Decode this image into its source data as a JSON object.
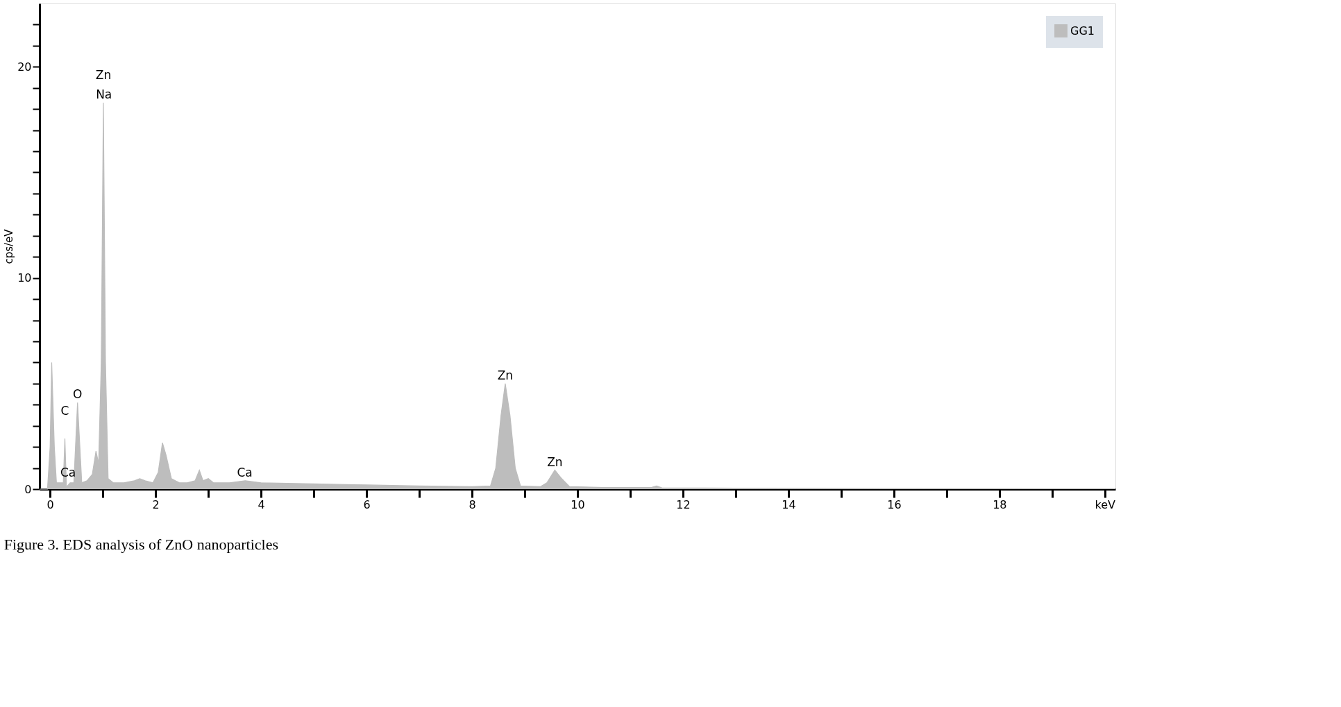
{
  "chart_data": {
    "type": "area",
    "ylabel": "cps/eV",
    "x": [
      -0.2,
      -0.05,
      0.0,
      0.03,
      0.08,
      0.12,
      0.18,
      0.25,
      0.28,
      0.31,
      0.38,
      0.45,
      0.52,
      0.6,
      0.7,
      0.8,
      0.87,
      0.92,
      0.97,
      1.01,
      1.05,
      1.1,
      1.2,
      1.4,
      1.6,
      1.7,
      1.8,
      1.95,
      2.05,
      2.13,
      2.2,
      2.3,
      2.45,
      2.6,
      2.75,
      2.83,
      2.9,
      3.0,
      3.1,
      3.4,
      3.7,
      4.0,
      5.0,
      6.0,
      7.0,
      8.0,
      8.35,
      8.45,
      8.55,
      8.63,
      8.72,
      8.82,
      8.92,
      9.3,
      9.42,
      9.57,
      9.7,
      9.85,
      10.5,
      11.4,
      11.5,
      11.6,
      13.0,
      16.0,
      20.2
    ],
    "series": [
      {
        "name": "GG1",
        "color": "#bdbdbd",
        "values": [
          0,
          0,
          2,
          6.0,
          2,
          0.3,
          0.3,
          0.3,
          2.4,
          0.1,
          0.3,
          0.3,
          4.1,
          0.3,
          0.4,
          0.7,
          1.8,
          1.2,
          6,
          18.3,
          6,
          0.5,
          0.3,
          0.3,
          0.4,
          0.5,
          0.4,
          0.3,
          0.8,
          2.2,
          1.6,
          0.5,
          0.3,
          0.3,
          0.4,
          0.9,
          0.4,
          0.5,
          0.3,
          0.3,
          0.4,
          0.3,
          0.25,
          0.2,
          0.15,
          0.12,
          0.15,
          1,
          3.5,
          5.0,
          3.5,
          1,
          0.15,
          0.12,
          0.3,
          0.9,
          0.5,
          0.12,
          0.08,
          0.08,
          0.15,
          0.06,
          0.05,
          0.03,
          0.02
        ]
      }
    ],
    "xlim": [
      -0.2,
      20.2
    ],
    "xticks": [
      0,
      {
        "value": 1,
        "label": null
      },
      2,
      {
        "value": 3,
        "label": null
      },
      4,
      {
        "value": 5,
        "label": null
      },
      6,
      {
        "value": 7,
        "label": null
      },
      8,
      {
        "value": 9,
        "label": null
      },
      10,
      {
        "value": 11,
        "label": null
      },
      12,
      {
        "value": 13,
        "label": null
      },
      14,
      {
        "value": 15,
        "label": null
      },
      16,
      {
        "value": 17,
        "label": null
      },
      18,
      {
        "value": 19,
        "label": null
      },
      {
        "value": 20,
        "label": "keV"
      }
    ],
    "ylim": [
      0,
      23
    ],
    "yticks": [
      0,
      {
        "value": 1,
        "label": null
      },
      {
        "value": 2,
        "label": null
      },
      {
        "value": 3,
        "label": null
      },
      {
        "value": 4,
        "label": null
      },
      {
        "value": 5,
        "label": null
      },
      {
        "value": 6,
        "label": null
      },
      {
        "value": 7,
        "label": null
      },
      {
        "value": 8,
        "label": null
      },
      {
        "value": 9,
        "label": null
      },
      10,
      {
        "value": 11,
        "label": null
      },
      {
        "value": 12,
        "label": null
      },
      {
        "value": 13,
        "label": null
      },
      {
        "value": 14,
        "label": null
      },
      {
        "value": 15,
        "label": null
      },
      {
        "value": 16,
        "label": null
      },
      {
        "value": 17,
        "label": null
      },
      {
        "value": 18,
        "label": null
      },
      {
        "value": 19,
        "label": null
      },
      20,
      {
        "value": 21,
        "label": null
      },
      {
        "value": 22,
        "label": null
      }
    ],
    "grid": false,
    "legend": "top right",
    "annotations": [
      {
        "text": "Ca",
        "x": 0.34,
        "y": 0.4
      },
      {
        "text": "C",
        "x": 0.28,
        "y": 2.4
      },
      {
        "text": "O",
        "x": 0.52,
        "y": 4.1
      },
      {
        "text": "Na",
        "x": 1.02,
        "y": 18.3
      },
      {
        "text": "Zn",
        "x": 1.01,
        "y": 18.3
      },
      {
        "text": "Ca",
        "x": 3.69,
        "y": 0.4
      },
      {
        "text": "Zn",
        "x": 8.63,
        "y": 5.0
      },
      {
        "text": "Zn",
        "x": 9.57,
        "y": 0.9
      },
      "Figure 3. EDS analysis of ZnO nanoparticles"
    ]
  }
}
